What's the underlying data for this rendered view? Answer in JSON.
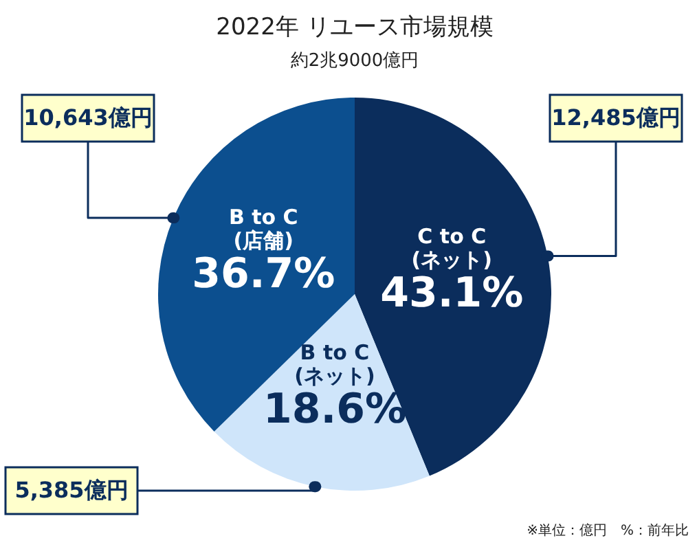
{
  "chart_data": {
    "type": "pie",
    "title": "2022年 リユース市場規模",
    "subtitle": "約2兆9000億円",
    "categories": [
      "C to C\n(ネット)",
      "B to C\n(ネット)",
      "B to C\n(店舗)"
    ],
    "values": [
      12485,
      5385,
      10643
    ],
    "colors": [
      "#0b2d5c",
      "#cfe5fa",
      "#0c4f8f"
    ],
    "value_labels": [
      "12,485億円",
      "5,385億円",
      "10,643億円"
    ],
    "annotations": [
      {
        "text": "43.1%",
        "x": "C to C\n(ネット)"
      },
      {
        "text": "18.6%",
        "x": "B to C\n(ネット)"
      },
      {
        "text": "36.7%",
        "x": "B to C\n(店舗)"
      },
      "※単位：億円　%：前年比"
    ]
  }
}
